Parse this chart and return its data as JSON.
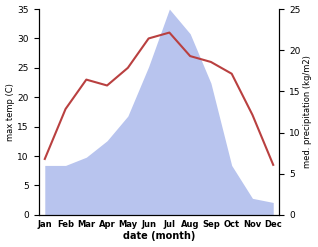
{
  "months": [
    "Jan",
    "Feb",
    "Mar",
    "Apr",
    "May",
    "Jun",
    "Jul",
    "Aug",
    "Sep",
    "Oct",
    "Nov",
    "Dec"
  ],
  "temperature": [
    9.5,
    18.0,
    23.0,
    22.0,
    25.0,
    30.0,
    31.0,
    27.0,
    26.0,
    24.0,
    17.0,
    8.5
  ],
  "precipitation": [
    6.0,
    6.0,
    7.0,
    9.0,
    12.0,
    18.0,
    25.0,
    22.0,
    16.0,
    6.0,
    2.0,
    1.5
  ],
  "temp_color": "#b94040",
  "precip_color": "#b8c4ee",
  "temp_ylim": [
    0,
    35
  ],
  "precip_ylim": [
    0,
    25
  ],
  "temp_yticks": [
    0,
    5,
    10,
    15,
    20,
    25,
    30,
    35
  ],
  "precip_yticks": [
    0,
    5,
    10,
    15,
    20,
    25
  ],
  "ylabel_left": "max temp (C)",
  "ylabel_right": "med. precipitation (kg/m2)",
  "xlabel": "date (month)",
  "background_color": "#ffffff"
}
